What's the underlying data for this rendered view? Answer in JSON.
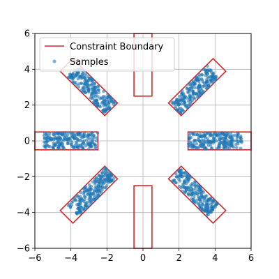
{
  "chart_data": {
    "type": "scatter",
    "title": "",
    "xlabel": "",
    "ylabel": "",
    "xlim": [
      -6,
      6
    ],
    "ylim": [
      -6,
      6
    ],
    "grid": true,
    "legend_position": "top-left",
    "xticks": [
      -6,
      -4,
      -2,
      0,
      2,
      4,
      6
    ],
    "yticks": [
      -6,
      -4,
      -2,
      0,
      2,
      4,
      6
    ],
    "xtick_labels": [
      "−6",
      "−4",
      "−2",
      "0",
      "2",
      "4",
      "6"
    ],
    "ytick_labels": [
      "−6",
      "−4",
      "−2",
      "0",
      "2",
      "4",
      "6"
    ],
    "legend": [
      {
        "label": "Constraint Boundary",
        "kind": "line",
        "color": "#d62728"
      },
      {
        "label": "Samples",
        "kind": "marker",
        "color": "#1f77b4"
      }
    ],
    "constraint_boundary": {
      "color": "#d62728",
      "shapes": [
        [
          [
            2.5,
            -0.5
          ],
          [
            6.0,
            -0.5
          ],
          [
            6.0,
            0.5
          ],
          [
            2.5,
            0.5
          ]
        ],
        [
          [
            1.414,
            2.121
          ],
          [
            2.121,
            1.414
          ],
          [
            4.596,
            3.889
          ],
          [
            3.889,
            4.596
          ]
        ],
        [
          [
            -0.5,
            2.5
          ],
          [
            0.5,
            2.5
          ],
          [
            0.5,
            6.0
          ],
          [
            -0.5,
            6.0
          ]
        ],
        [
          [
            -2.121,
            1.414
          ],
          [
            -1.414,
            2.121
          ],
          [
            -3.889,
            4.596
          ],
          [
            -4.596,
            3.889
          ]
        ],
        [
          [
            -6.0,
            -0.5
          ],
          [
            -2.5,
            -0.5
          ],
          [
            -2.5,
            0.5
          ],
          [
            -6.0,
            0.5
          ]
        ],
        [
          [
            -1.414,
            -2.121
          ],
          [
            -2.121,
            -1.414
          ],
          [
            -4.596,
            -3.889
          ],
          [
            -3.889,
            -4.596
          ]
        ],
        [
          [
            -0.5,
            -6.0
          ],
          [
            0.5,
            -6.0
          ],
          [
            0.5,
            -2.5
          ],
          [
            -0.5,
            -2.5
          ]
        ],
        [
          [
            2.121,
            -1.414
          ],
          [
            1.414,
            -2.121
          ],
          [
            3.889,
            -4.596
          ],
          [
            4.596,
            -3.889
          ]
        ]
      ]
    },
    "samples": {
      "color": "#1f77b4",
      "clusters": [
        {
          "from": [
            2.5,
            0.0
          ],
          "to": [
            5.5,
            0.0
          ]
        },
        {
          "from": [
            1.8,
            1.8
          ],
          "to": [
            3.9,
            3.9
          ]
        },
        {
          "from": [
            -1.8,
            1.8
          ],
          "to": [
            -3.9,
            3.9
          ]
        },
        {
          "from": [
            -2.5,
            0.0
          ],
          "to": [
            -5.5,
            0.0
          ]
        },
        {
          "from": [
            -1.8,
            -1.8
          ],
          "to": [
            -3.9,
            -3.9
          ]
        },
        {
          "from": [
            1.8,
            -1.8
          ],
          "to": [
            3.9,
            -3.9
          ]
        }
      ],
      "half_width": 0.45
    }
  }
}
